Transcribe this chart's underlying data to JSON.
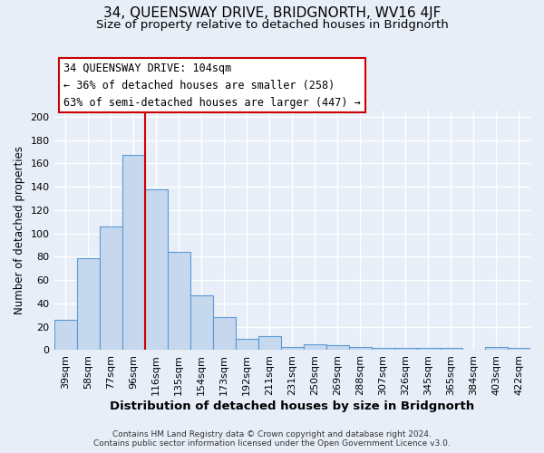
{
  "title": "34, QUEENSWAY DRIVE, BRIDGNORTH, WV16 4JF",
  "subtitle": "Size of property relative to detached houses in Bridgnorth",
  "xlabel": "Distribution of detached houses by size in Bridgnorth",
  "ylabel": "Number of detached properties",
  "bar_labels": [
    "39sqm",
    "58sqm",
    "77sqm",
    "96sqm",
    "116sqm",
    "135sqm",
    "154sqm",
    "173sqm",
    "192sqm",
    "211sqm",
    "231sqm",
    "250sqm",
    "269sqm",
    "288sqm",
    "307sqm",
    "326sqm",
    "345sqm",
    "365sqm",
    "384sqm",
    "403sqm",
    "422sqm"
  ],
  "bar_heights": [
    26,
    79,
    106,
    167,
    138,
    84,
    47,
    28,
    10,
    12,
    3,
    5,
    4,
    3,
    2,
    2,
    2,
    2,
    0,
    3,
    2
  ],
  "bar_color": "#c5d8ed",
  "bar_edge_color": "#5b9bd5",
  "vline_x": 3.5,
  "vline_color": "#cc0000",
  "annotation_title": "34 QUEENSWAY DRIVE: 104sqm",
  "annotation_line1": "← 36% of detached houses are smaller (258)",
  "annotation_line2": "63% of semi-detached houses are larger (447) →",
  "annotation_box_edge": "#cc0000",
  "annotation_box_face": "#ffffff",
  "ylim": [
    0,
    205
  ],
  "yticks": [
    0,
    20,
    40,
    60,
    80,
    100,
    120,
    140,
    160,
    180,
    200
  ],
  "footer1": "Contains HM Land Registry data © Crown copyright and database right 2024.",
  "footer2": "Contains public sector information licensed under the Open Government Licence v3.0.",
  "bg_color": "#e8eef8",
  "grid_color": "#ffffff",
  "title_fontsize": 11,
  "subtitle_fontsize": 9.5,
  "xlabel_fontsize": 9.5,
  "ylabel_fontsize": 8.5,
  "tick_fontsize": 8,
  "footer_fontsize": 6.5,
  "annotation_fontsize": 8.5
}
